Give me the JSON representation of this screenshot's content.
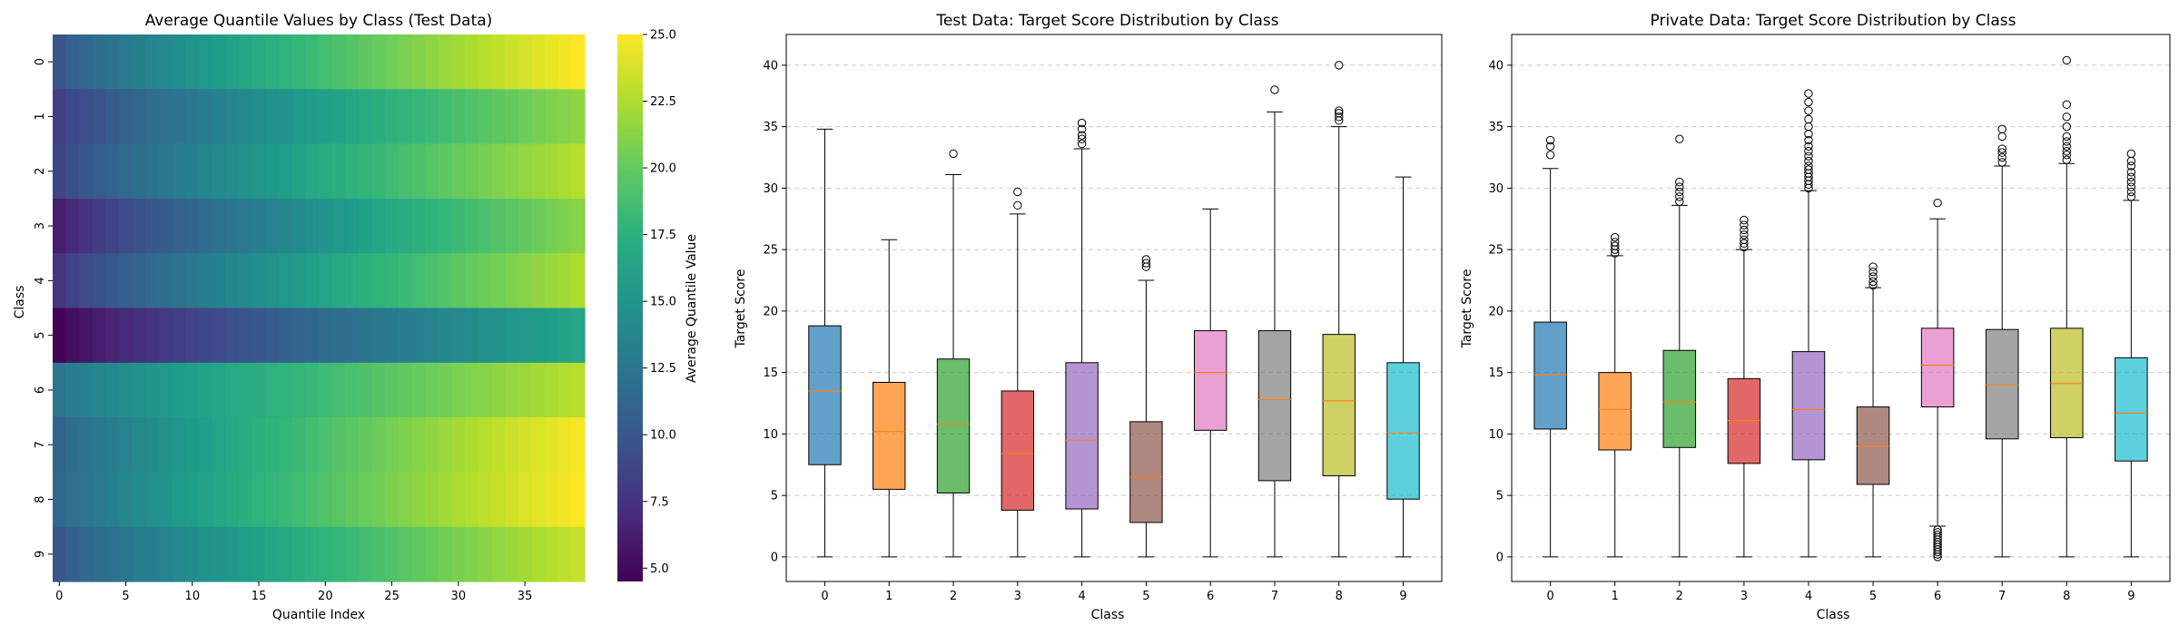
{
  "chart_data": [
    {
      "type": "heatmap",
      "title": "Average Quantile Values by Class (Test Data)",
      "xlabel": "Quantile Index",
      "ylabel": "Class",
      "x_ticks": [
        "0",
        "5",
        "10",
        "15",
        "20",
        "25",
        "30",
        "35"
      ],
      "y_ticks": [
        "0",
        "1",
        "2",
        "3",
        "4",
        "5",
        "6",
        "7",
        "8",
        "9"
      ],
      "n_quantiles": 40,
      "colormap": "viridis",
      "colorbar": {
        "label": "Average Quantile Value",
        "range": [
          4.5,
          25.0
        ],
        "ticks": [
          "5.0",
          "7.5",
          "10.0",
          "12.5",
          "15.0",
          "17.5",
          "20.0",
          "22.5",
          "25.0"
        ]
      },
      "rows": [
        {
          "class": "0",
          "start": 10.0,
          "end": 25.0
        },
        {
          "class": "1",
          "start": 8.3,
          "end": 21.5
        },
        {
          "class": "2",
          "start": 8.8,
          "end": 22.8
        },
        {
          "class": "3",
          "start": 6.2,
          "end": 21.3
        },
        {
          "class": "4",
          "start": 7.8,
          "end": 22.5
        },
        {
          "class": "5",
          "start": 4.6,
          "end": 16.5
        },
        {
          "class": "6",
          "start": 12.5,
          "end": 22.8
        },
        {
          "class": "7",
          "start": 11.0,
          "end": 24.8
        },
        {
          "class": "8",
          "start": 11.3,
          "end": 25.0
        },
        {
          "class": "9",
          "start": 10.0,
          "end": 23.3
        }
      ]
    },
    {
      "type": "box",
      "title": "Test Data: Target Score Distribution by Class",
      "xlabel": "Class",
      "ylabel": "Target Score",
      "ylim": [
        -2,
        42.5
      ],
      "y_ticks": [
        0,
        5,
        10,
        15,
        20,
        25,
        30,
        35,
        40
      ],
      "grid": "y-dashed",
      "categories": [
        "0",
        "1",
        "2",
        "3",
        "4",
        "5",
        "6",
        "7",
        "8",
        "9"
      ],
      "boxes": [
        {
          "class": "0",
          "whislo": 0,
          "q1": 7.5,
          "med": 13.5,
          "q3": 18.8,
          "whishi": 34.8,
          "fliers": [],
          "color": "#1f77b4"
        },
        {
          "class": "1",
          "whislo": 0,
          "q1": 5.5,
          "med": 10.2,
          "q3": 14.2,
          "whishi": 25.8,
          "fliers": [],
          "color": "#ff7f0e"
        },
        {
          "class": "2",
          "whislo": 0,
          "q1": 5.2,
          "med": 10.8,
          "q3": 16.1,
          "whishi": 31.1,
          "fliers": [
            32.8
          ],
          "color": "#2ca02c"
        },
        {
          "class": "3",
          "whislo": 0,
          "q1": 3.8,
          "med": 8.4,
          "q3": 13.5,
          "whishi": 27.9,
          "fliers": [
            28.6,
            29.7
          ],
          "color": "#d62728"
        },
        {
          "class": "4",
          "whislo": 0,
          "q1": 3.9,
          "med": 9.5,
          "q3": 15.8,
          "whishi": 33.2,
          "fliers": [
            33.6,
            34.0,
            34.3,
            34.8,
            35.3
          ],
          "color": "#9467bd"
        },
        {
          "class": "5",
          "whislo": 0,
          "q1": 2.8,
          "med": 6.5,
          "q3": 11.0,
          "whishi": 22.5,
          "fliers": [
            23.6,
            23.9,
            24.2
          ],
          "color": "#8c564b"
        },
        {
          "class": "6",
          "whislo": 0,
          "q1": 10.3,
          "med": 15.0,
          "q3": 18.4,
          "whishi": 28.3,
          "fliers": [],
          "color": "#e377c2"
        },
        {
          "class": "7",
          "whislo": 0,
          "q1": 6.2,
          "med": 12.8,
          "q3": 18.4,
          "whishi": 36.2,
          "fliers": [
            38.0
          ],
          "color": "#7f7f7f"
        },
        {
          "class": "8",
          "whislo": 0,
          "q1": 6.6,
          "med": 12.7,
          "q3": 18.1,
          "whishi": 35.0,
          "fliers": [
            35.5,
            35.8,
            36.1,
            36.3,
            40.0
          ],
          "color": "#bcbd22"
        },
        {
          "class": "9",
          "whislo": 0,
          "q1": 4.7,
          "med": 10.1,
          "q3": 15.8,
          "whishi": 30.9,
          "fliers": [],
          "color": "#17becf"
        }
      ]
    },
    {
      "type": "box",
      "title": "Private Data: Target Score Distribution by Class",
      "xlabel": "Class",
      "ylabel": "Target Score",
      "ylim": [
        -2,
        42.5
      ],
      "y_ticks": [
        0,
        5,
        10,
        15,
        20,
        25,
        30,
        35,
        40
      ],
      "grid": "y-dashed",
      "categories": [
        "0",
        "1",
        "2",
        "3",
        "4",
        "5",
        "6",
        "7",
        "8",
        "9"
      ],
      "boxes": [
        {
          "class": "0",
          "whislo": 0,
          "q1": 10.4,
          "med": 14.8,
          "q3": 19.1,
          "whishi": 31.6,
          "fliers": [
            32.7,
            33.4,
            33.9
          ],
          "color": "#1f77b4"
        },
        {
          "class": "1",
          "whislo": 0,
          "q1": 8.7,
          "med": 12.0,
          "q3": 15.0,
          "whishi": 24.5,
          "fliers": [
            24.7,
            25.0,
            25.3,
            25.6,
            26.0
          ],
          "color": "#ff7f0e"
        },
        {
          "class": "2",
          "whislo": 0,
          "q1": 8.9,
          "med": 12.6,
          "q3": 16.8,
          "whishi": 28.6,
          "fliers": [
            28.9,
            29.3,
            29.7,
            30.1,
            30.5,
            34.0
          ],
          "color": "#2ca02c"
        },
        {
          "class": "3",
          "whislo": 0,
          "q1": 7.6,
          "med": 11.1,
          "q3": 14.5,
          "whishi": 25.0,
          "fliers": [
            25.2,
            25.5,
            25.8,
            26.2,
            26.6,
            27.0,
            27.4
          ],
          "color": "#d62728"
        },
        {
          "class": "4",
          "whislo": 0,
          "q1": 7.9,
          "med": 12.0,
          "q3": 16.7,
          "whishi": 29.8,
          "fliers": [
            30.0,
            30.3,
            30.6,
            30.9,
            31.2,
            31.5,
            31.8,
            32.2,
            32.6,
            33.0,
            33.4,
            33.9,
            34.4,
            35.0,
            35.6,
            36.3,
            37.0,
            37.7
          ],
          "color": "#9467bd"
        },
        {
          "class": "5",
          "whislo": 0,
          "q1": 5.9,
          "med": 9.0,
          "q3": 12.2,
          "whishi": 21.9,
          "fliers": [
            22.1,
            22.4,
            22.8,
            23.2,
            23.6
          ],
          "color": "#8c564b"
        },
        {
          "class": "6",
          "whislo": 2.5,
          "q1": 12.2,
          "med": 15.6,
          "q3": 18.6,
          "whishi": 27.5,
          "fliers": [
            0.0,
            0.2,
            0.4,
            0.6,
            0.8,
            1.0,
            1.2,
            1.4,
            1.6,
            1.8,
            2.0,
            2.2,
            28.8
          ],
          "color": "#e377c2"
        },
        {
          "class": "7",
          "whislo": 0,
          "q1": 9.6,
          "med": 14.0,
          "q3": 18.5,
          "whishi": 31.8,
          "fliers": [
            32.1,
            32.5,
            32.9,
            33.2,
            34.2,
            34.8
          ],
          "color": "#7f7f7f"
        },
        {
          "class": "8",
          "whislo": 0,
          "q1": 9.7,
          "med": 14.1,
          "q3": 18.6,
          "whishi": 32.0,
          "fliers": [
            32.3,
            32.7,
            33.0,
            33.4,
            33.8,
            34.2,
            35.0,
            35.8,
            36.8,
            40.4
          ],
          "color": "#bcbd22"
        },
        {
          "class": "9",
          "whislo": 0,
          "q1": 7.8,
          "med": 11.7,
          "q3": 16.2,
          "whishi": 29.0,
          "fliers": [
            29.3,
            29.7,
            30.1,
            30.5,
            30.9,
            31.3,
            31.8,
            32.2,
            32.8
          ],
          "color": "#17becf"
        }
      ]
    }
  ]
}
